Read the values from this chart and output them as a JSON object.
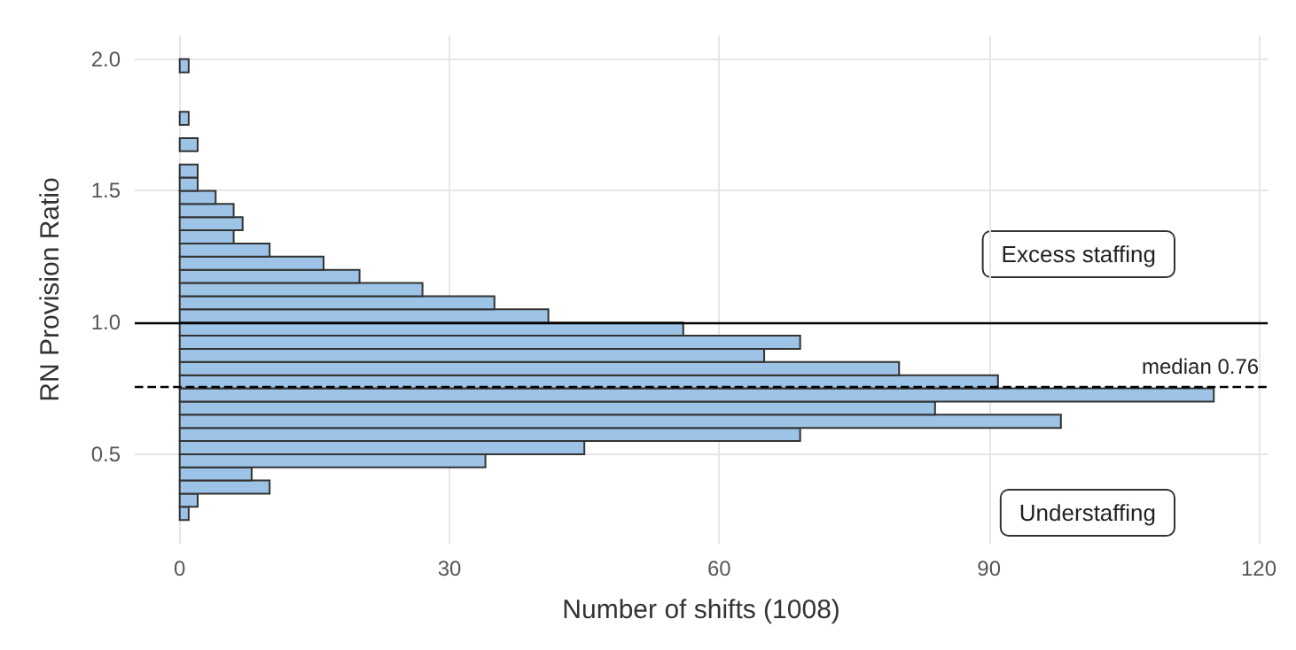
{
  "chart_data": {
    "type": "histogram",
    "orientation": "horizontal",
    "xlabel": "Number of shifts (1008)",
    "ylabel": "RN Provision Ratio",
    "bins": [
      0.25,
      0.3,
      0.35,
      0.4,
      0.45,
      0.5,
      0.55,
      0.6,
      0.65,
      0.7,
      0.75,
      0.8,
      0.85,
      0.9,
      0.95,
      1.0,
      1.05,
      1.1,
      1.15,
      1.2,
      1.25,
      1.3,
      1.35,
      1.4,
      1.45,
      1.5,
      1.55,
      1.6,
      1.65,
      1.7,
      1.75,
      1.8,
      1.85,
      1.9,
      1.95,
      2.0
    ],
    "values": [
      1,
      2,
      10,
      8,
      34,
      45,
      69,
      98,
      84,
      115,
      91,
      80,
      65,
      69,
      56,
      41,
      35,
      27,
      20,
      16,
      10,
      6,
      7,
      6,
      4,
      2,
      2,
      0,
      2,
      0,
      1,
      0,
      0,
      0,
      1
    ],
    "color": "#9dc3e6",
    "xlim": [
      -5,
      121
    ],
    "xticks": [
      0,
      30,
      60,
      90,
      120
    ],
    "ylim": [
      0.16,
      2.09
    ],
    "yticks": [
      {
        "value": 0.5,
        "label": "0.5"
      },
      {
        "value": 1,
        "label": "1.0"
      },
      {
        "value": 1.5,
        "label": "1.5"
      },
      {
        "value": 2,
        "label": "2.0"
      }
    ],
    "grid": true,
    "ref_lines": [
      {
        "axis": "y",
        "value": 1,
        "label": null,
        "line_style": "solid"
      },
      {
        "axis": "y",
        "value": 0.76,
        "label": "median 0.76",
        "line_style": "dashed"
      }
    ],
    "annotations": [
      "Excess staffing",
      "Understaffing"
    ]
  }
}
